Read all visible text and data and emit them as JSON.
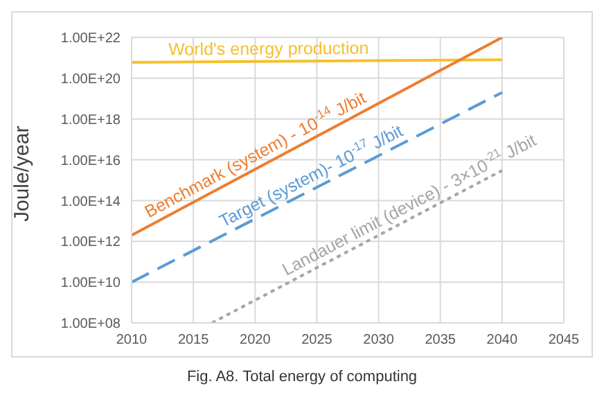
{
  "chart_data": {
    "type": "line",
    "ylabel": "Joule/year",
    "annotations": [
      "Fig. A8. Total energy of computing"
    ],
    "xlim": [
      2010,
      2045
    ],
    "xticks": [
      2010,
      2015,
      2020,
      2025,
      2030,
      2035,
      2040,
      2045
    ],
    "ylim": [
      100000000.0,
      1e+22
    ],
    "yticks": [
      {
        "value": 100000000.0,
        "label": "1.00E+08"
      },
      {
        "value": 10000000000.0,
        "label": "1.00E+10"
      },
      {
        "value": 1000000000000.0,
        "label": "1.00E+12"
      },
      {
        "value": 100000000000000.0,
        "label": "1.00E+14"
      },
      {
        "value": 1e+16,
        "label": "1.00E+16"
      },
      {
        "value": 1e+18,
        "label": "1.00E+18"
      },
      {
        "value": 1e+20,
        "label": "1.00E+20"
      },
      {
        "value": 1e+22,
        "label": "1.00E+22"
      }
    ],
    "log": "y",
    "grid": true,
    "legend": false,
    "marker": "none",
    "series": [
      {
        "name": "World's energy production",
        "color": "#f5c02c",
        "x": [
          2010,
          2040
        ],
        "values": [
          6e+20,
          8e+20
        ],
        "line_style": "solid"
      },
      {
        "name": "Benchmark (system) - 10$^{-14}$ J/bit",
        "color": "#ed7d31",
        "x": [
          2010,
          2040
        ],
        "values": [
          2000000000000.0,
          1e+22
        ],
        "line_style": "solid"
      },
      {
        "name": "Target (system)- 10$^{-17}$ J/bit",
        "color": "#5b9bd5",
        "x": [
          2010,
          2040
        ],
        "values": [
          10000000000.0,
          2e+19
        ],
        "line_style": "dashed"
      },
      {
        "name": "Landauer limit (device) - 3×10$^{-21}$ J/bit",
        "color": "#a5a5a5",
        "x": [
          2016.5,
          2040
        ],
        "values": [
          100000000.0,
          3000000000000000.0
        ],
        "line_style": "dotted"
      }
    ]
  }
}
